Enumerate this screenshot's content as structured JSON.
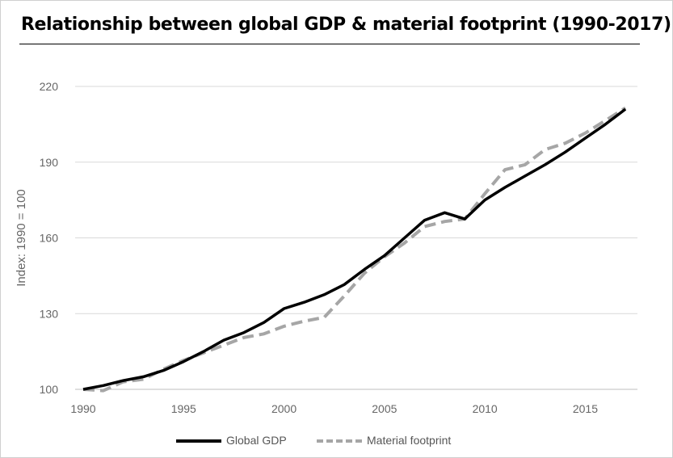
{
  "chart_data": {
    "type": "line",
    "title": "Relationship between global GDP & material footprint (1990-2017)",
    "ylabel": "Index: 1990 = 100",
    "xlabel": "",
    "xlim": [
      1990,
      2018
    ],
    "ylim": [
      100,
      220
    ],
    "yticks": [
      100,
      130,
      160,
      190,
      220
    ],
    "xticks": [
      1990,
      1995,
      2000,
      2005,
      2010,
      2015
    ],
    "grid": "horizontal",
    "legend_position": "bottom",
    "series": [
      {
        "name": "Global GDP",
        "color": "#000000",
        "style": "solid",
        "x": [
          1990,
          1991,
          1992,
          1993,
          1994,
          1995,
          1996,
          1997,
          1998,
          1999,
          2000,
          2001,
          2002,
          2003,
          2004,
          2005,
          2006,
          2007,
          2008,
          2009,
          2010,
          2011,
          2012,
          2013,
          2014,
          2015,
          2016,
          2017
        ],
        "values": [
          100,
          101.5,
          103.5,
          105,
          107.5,
          111,
          115,
          119.5,
          122.5,
          126.5,
          132,
          134.5,
          137.5,
          141.5,
          147.5,
          153,
          160,
          167,
          170,
          167.5,
          175,
          180,
          184.5,
          189,
          194,
          199.5,
          205,
          211
        ]
      },
      {
        "name": "Material footprint",
        "color": "#a6a6a6",
        "style": "dashed",
        "x": [
          1990,
          1991,
          1992,
          1993,
          1994,
          1995,
          1996,
          1997,
          1998,
          1999,
          2000,
          2001,
          2002,
          2003,
          2004,
          2005,
          2006,
          2007,
          2008,
          2009,
          2010,
          2011,
          2012,
          2013,
          2014,
          2015,
          2016,
          2017
        ],
        "values": [
          100,
          99.5,
          103,
          104,
          108,
          111.5,
          114.5,
          117.5,
          120.5,
          122,
          125,
          127,
          128.5,
          137,
          146,
          152.5,
          158,
          164.5,
          166.5,
          167.5,
          177.5,
          187,
          189,
          195,
          197.5,
          201.5,
          206.5,
          211.5
        ]
      }
    ]
  }
}
